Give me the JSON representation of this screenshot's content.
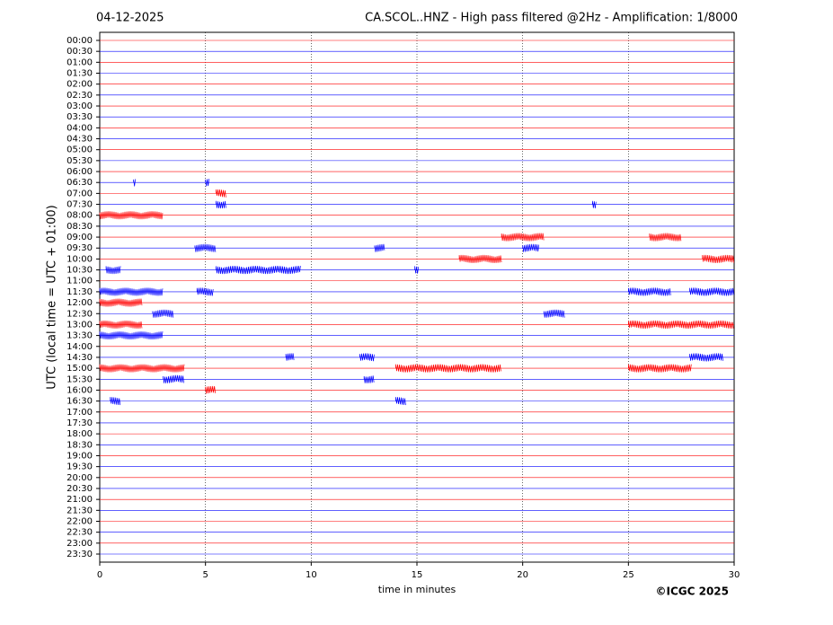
{
  "chart_data": {
    "type": "helicorder",
    "date": "04-12-2025",
    "title": "CA.SCOL..HNZ - High pass filtered @2Hz - Amplification: 1/8000",
    "ylabel": "UTC (local time = UTC + 01:00)",
    "xlabel": "time in minutes",
    "credit": "©ICGC 2025",
    "xlim": [
      0,
      30
    ],
    "xticks": [
      0,
      5,
      10,
      15,
      20,
      25,
      30
    ],
    "grid": true,
    "series": [
      {
        "name": "00:00",
        "color": "#ff0000",
        "bursts": []
      },
      {
        "name": "00:30",
        "color": "#0000ff",
        "bursts": []
      },
      {
        "name": "01:00",
        "color": "#ff0000",
        "bursts": []
      },
      {
        "name": "01:30",
        "color": "#0000ff",
        "bursts": []
      },
      {
        "name": "02:00",
        "color": "#ff0000",
        "bursts": []
      },
      {
        "name": "02:30",
        "color": "#0000ff",
        "bursts": []
      },
      {
        "name": "03:00",
        "color": "#ff0000",
        "bursts": []
      },
      {
        "name": "03:30",
        "color": "#0000ff",
        "bursts": []
      },
      {
        "name": "04:00",
        "color": "#ff0000",
        "bursts": []
      },
      {
        "name": "04:30",
        "color": "#0000ff",
        "bursts": []
      },
      {
        "name": "05:00",
        "color": "#ff0000",
        "bursts": []
      },
      {
        "name": "05:30",
        "color": "#0000ff",
        "bursts": []
      },
      {
        "name": "06:00",
        "color": "#ff0000",
        "bursts": []
      },
      {
        "name": "06:30",
        "color": "#0000ff",
        "bursts": [
          [
            1.6,
            1.7
          ],
          [
            5.0,
            5.2
          ]
        ]
      },
      {
        "name": "07:00",
        "color": "#ff0000",
        "bursts": [
          [
            5.5,
            6.0
          ]
        ]
      },
      {
        "name": "07:30",
        "color": "#0000ff",
        "bursts": [
          [
            5.5,
            6.0
          ],
          [
            23.3,
            23.5
          ]
        ]
      },
      {
        "name": "08:00",
        "color": "#ff0000",
        "bursts": [
          [
            0.0,
            3.0
          ]
        ]
      },
      {
        "name": "08:30",
        "color": "#0000ff",
        "bursts": []
      },
      {
        "name": "09:00",
        "color": "#ff0000",
        "bursts": [
          [
            19.0,
            21.0
          ],
          [
            26.0,
            27.5
          ]
        ]
      },
      {
        "name": "09:30",
        "color": "#0000ff",
        "bursts": [
          [
            4.5,
            5.5
          ],
          [
            13.0,
            13.5
          ],
          [
            20.0,
            20.8
          ]
        ]
      },
      {
        "name": "10:00",
        "color": "#ff0000",
        "bursts": [
          [
            17.0,
            19.0
          ],
          [
            28.5,
            30.0
          ]
        ]
      },
      {
        "name": "10:30",
        "color": "#0000ff",
        "bursts": [
          [
            0.3,
            1.0
          ],
          [
            5.5,
            9.5
          ],
          [
            14.9,
            15.1
          ]
        ]
      },
      {
        "name": "11:00",
        "color": "#ff0000",
        "bursts": []
      },
      {
        "name": "11:30",
        "color": "#0000ff",
        "bursts": [
          [
            0.0,
            3.0
          ],
          [
            4.6,
            5.4
          ],
          [
            25.0,
            27.0
          ],
          [
            27.9,
            30.0
          ]
        ]
      },
      {
        "name": "12:00",
        "color": "#ff0000",
        "bursts": [
          [
            0.0,
            2.0
          ]
        ]
      },
      {
        "name": "12:30",
        "color": "#0000ff",
        "bursts": [
          [
            2.5,
            3.5
          ],
          [
            21.0,
            22.0
          ]
        ]
      },
      {
        "name": "13:00",
        "color": "#ff0000",
        "bursts": [
          [
            0.0,
            2.0
          ],
          [
            25.0,
            30.0
          ]
        ]
      },
      {
        "name": "13:30",
        "color": "#0000ff",
        "bursts": [
          [
            0.0,
            3.0
          ]
        ]
      },
      {
        "name": "14:00",
        "color": "#ff0000",
        "bursts": []
      },
      {
        "name": "14:30",
        "color": "#0000ff",
        "bursts": [
          [
            8.8,
            9.2
          ],
          [
            12.3,
            13.0
          ],
          [
            27.9,
            29.5
          ]
        ]
      },
      {
        "name": "15:00",
        "color": "#ff0000",
        "bursts": [
          [
            0.0,
            4.0
          ],
          [
            14.0,
            19.0
          ],
          [
            25.0,
            28.0
          ]
        ]
      },
      {
        "name": "15:30",
        "color": "#0000ff",
        "bursts": [
          [
            3.0,
            4.0
          ],
          [
            12.5,
            13.0
          ]
        ]
      },
      {
        "name": "16:00",
        "color": "#ff0000",
        "bursts": [
          [
            5.0,
            5.5
          ]
        ]
      },
      {
        "name": "16:30",
        "color": "#0000ff",
        "bursts": [
          [
            0.5,
            1.0
          ],
          [
            14.0,
            14.5
          ]
        ]
      },
      {
        "name": "17:00",
        "color": "#ff0000",
        "bursts": []
      },
      {
        "name": "17:30",
        "color": "#0000ff",
        "bursts": []
      },
      {
        "name": "18:00",
        "color": "#ff0000",
        "bursts": []
      },
      {
        "name": "18:30",
        "color": "#0000ff",
        "bursts": []
      },
      {
        "name": "19:00",
        "color": "#ff0000",
        "bursts": []
      },
      {
        "name": "19:30",
        "color": "#0000ff",
        "bursts": []
      },
      {
        "name": "20:00",
        "color": "#ff0000",
        "bursts": []
      },
      {
        "name": "20:30",
        "color": "#0000ff",
        "bursts": []
      },
      {
        "name": "21:00",
        "color": "#ff0000",
        "bursts": []
      },
      {
        "name": "21:30",
        "color": "#0000ff",
        "bursts": []
      },
      {
        "name": "22:00",
        "color": "#ff0000",
        "bursts": []
      },
      {
        "name": "22:30",
        "color": "#0000ff",
        "bursts": []
      },
      {
        "name": "23:00",
        "color": "#ff0000",
        "bursts": []
      },
      {
        "name": "23:30",
        "color": "#0000ff",
        "bursts": []
      }
    ]
  }
}
